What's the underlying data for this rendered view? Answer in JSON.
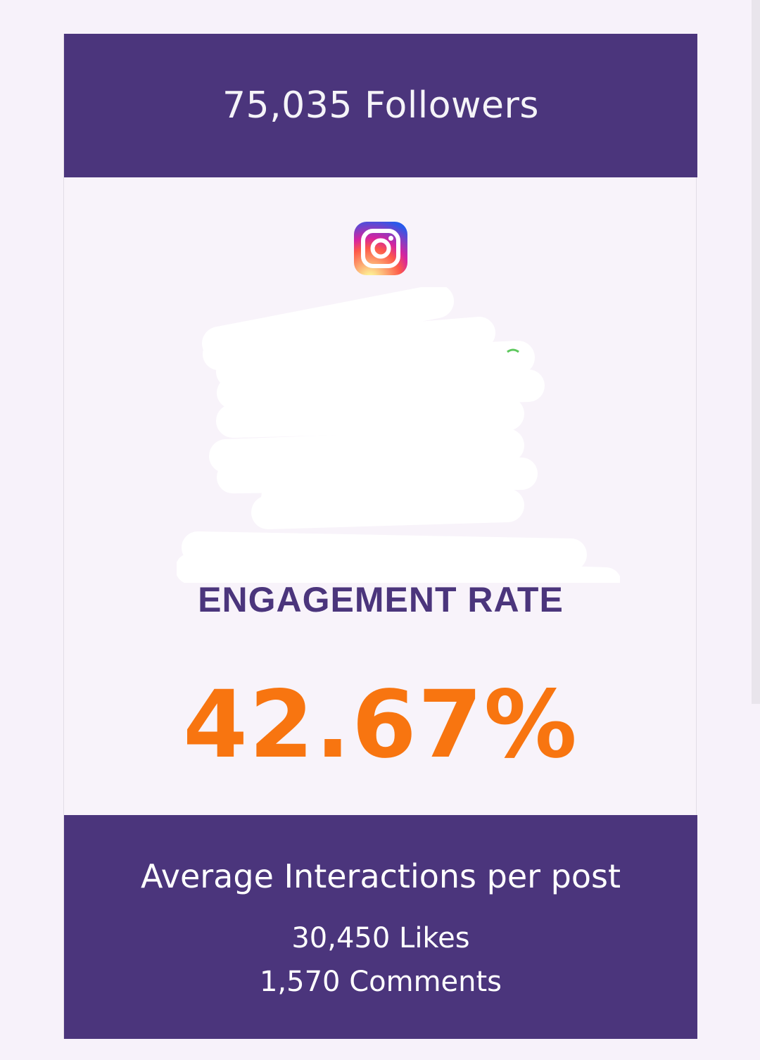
{
  "header": {
    "followers": "75,035 Followers"
  },
  "platform": {
    "icon": "instagram-icon",
    "gradient_colors": [
      "#fdf497",
      "#fd5949",
      "#d6249f",
      "#285AEB"
    ]
  },
  "engagement": {
    "label": "ENGAGEMENT RATE",
    "value": "42.67%"
  },
  "footer": {
    "title": "Average Interactions per post",
    "likes": "30,450 Likes",
    "comments": "1,570 Comments"
  },
  "colors": {
    "primary": "#4b357c",
    "accent": "#f87510",
    "background": "#f8f3fa"
  }
}
